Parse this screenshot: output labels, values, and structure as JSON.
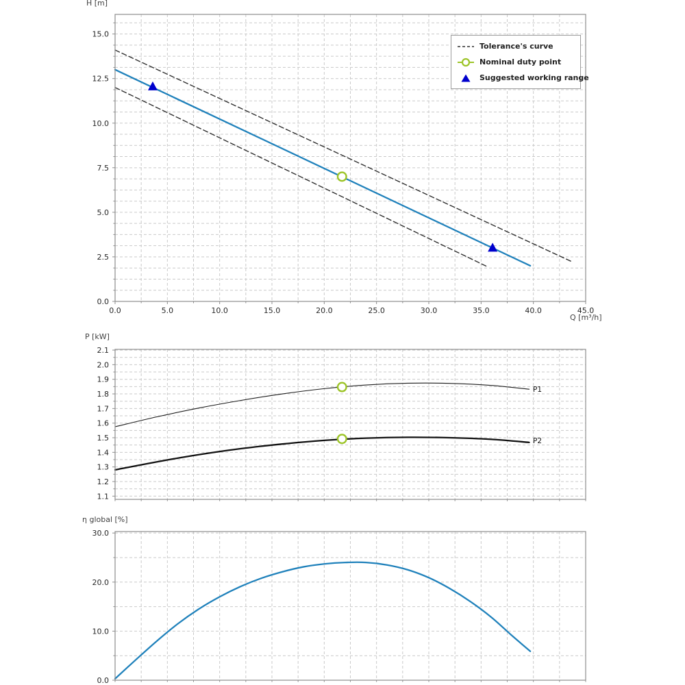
{
  "page": {
    "background": "#ffffff"
  },
  "colors": {
    "curve_blue": "#1f81bb",
    "marker_green": "#9cc427",
    "marker_blue": "#0000cd",
    "tolerance_dash": "#2e2e2e",
    "p1_line": "#1a1a1a",
    "p2_line": "#111111",
    "grid": "#c9c9c9",
    "spine": "#8c8c8c",
    "tick_text": "#262626",
    "axis_label_text": "#3f3f3f",
    "legend_border": "#9a9a9a"
  },
  "legend": {
    "items": [
      {
        "label": "Tolerance's curve",
        "marker": "dashed-line"
      },
      {
        "label": "Nominal duty point",
        "marker": "green-circle"
      },
      {
        "label": "Suggested working range",
        "marker": "blue-triangle"
      }
    ]
  },
  "chart_data": [
    {
      "id": "head_curve",
      "type": "line",
      "title": "",
      "ylabel": "H [m]",
      "xlabel": "Q [m³/h]",
      "xlim": [
        0,
        45
      ],
      "ylim": [
        0,
        16.1
      ],
      "grid_on": true,
      "xticks": {
        "values": [
          0,
          5,
          10,
          15,
          20,
          25,
          30,
          35,
          40,
          45
        ],
        "labels": [
          "0.0",
          "5.0",
          "10.0",
          "15.0",
          "20.0",
          "25.0",
          "30.0",
          "35.0",
          "40.0",
          "45.0"
        ]
      },
      "yticks": {
        "values": [
          0,
          2.5,
          5,
          7.5,
          10,
          12.5,
          15
        ],
        "labels": [
          "0.0",
          "2.5",
          "5.0",
          "7.5",
          "10.0",
          "12.5",
          "15.0"
        ]
      },
      "grid": {
        "x_step": 2.5,
        "y_step": 0.625
      },
      "series": [
        {
          "name": "tolerance_upper",
          "role": "tolerance",
          "points": [
            [
              0,
              14.1
            ],
            [
              43.6,
              2.25
            ]
          ]
        },
        {
          "name": "tolerance_lower",
          "role": "tolerance",
          "points": [
            [
              0,
              12.0
            ],
            [
              35.7,
              1.92
            ]
          ]
        },
        {
          "name": "head",
          "role": "main",
          "points": [
            [
              0,
              13.0
            ],
            [
              39.7,
              2.0
            ]
          ]
        }
      ],
      "markers": [
        {
          "name": "nominal-duty-point",
          "shape": "circle",
          "point": [
            21.7,
            7.0
          ]
        },
        {
          "name": "working-range-min",
          "shape": "triangle",
          "point": [
            3.6,
            12.05
          ]
        },
        {
          "name": "working-range-max",
          "shape": "triangle",
          "point": [
            36.1,
            3.0
          ]
        }
      ]
    },
    {
      "id": "power_curves",
      "type": "line",
      "title": "",
      "ylabel": "P [kW]",
      "xlabel": "",
      "xlim": [
        0,
        45
      ],
      "ylim": [
        1.078,
        2.105
      ],
      "grid_on": true,
      "xticks": {
        "values": [],
        "labels": []
      },
      "yticks": {
        "values": [
          1.1,
          1.2,
          1.3,
          1.4,
          1.5,
          1.6,
          1.7,
          1.8,
          1.9,
          2.0,
          2.1
        ],
        "labels": [
          "1.1",
          "1.2",
          "1.3",
          "1.4",
          "1.5",
          "1.6",
          "1.7",
          "1.8",
          "1.9",
          "2.0",
          "2.1"
        ]
      },
      "grid": {
        "x_step": 2.5,
        "y_step": 0.05
      },
      "series": [
        {
          "name": "P1",
          "role": "p1",
          "label": "P1",
          "points": [
            [
              0,
              1.575
            ],
            [
              4,
              1.643
            ],
            [
              8,
              1.703
            ],
            [
              12,
              1.755
            ],
            [
              16,
              1.8
            ],
            [
              20,
              1.836
            ],
            [
              24,
              1.861
            ],
            [
              28,
              1.873
            ],
            [
              32,
              1.872
            ],
            [
              36,
              1.858
            ],
            [
              39.6,
              1.832
            ]
          ]
        },
        {
          "name": "P2",
          "role": "p2",
          "label": "P2",
          "points": [
            [
              0,
              1.28
            ],
            [
              4,
              1.335
            ],
            [
              8,
              1.384
            ],
            [
              12,
              1.425
            ],
            [
              16,
              1.457
            ],
            [
              20,
              1.482
            ],
            [
              24,
              1.497
            ],
            [
              28,
              1.503
            ],
            [
              32,
              1.5
            ],
            [
              36,
              1.489
            ],
            [
              39.6,
              1.468
            ]
          ]
        }
      ],
      "markers": [
        {
          "name": "duty-point-p1",
          "shape": "circle",
          "point": [
            21.7,
            1.847
          ]
        },
        {
          "name": "duty-point-p2",
          "shape": "circle",
          "point": [
            21.7,
            1.492
          ]
        }
      ]
    },
    {
      "id": "efficiency_curve",
      "type": "line",
      "title": "",
      "ylabel": "η global [%]",
      "xlabel": "",
      "xlim": [
        0,
        45
      ],
      "ylim": [
        0,
        30.3
      ],
      "grid_on": true,
      "xticks": {
        "values": [],
        "labels": []
      },
      "yticks": {
        "values": [
          0,
          10,
          20,
          30
        ],
        "labels": [
          "0.0",
          "10.0",
          "20.0",
          "30.0"
        ]
      },
      "grid": {
        "x_step": 2.5,
        "y_step": 5
      },
      "series": [
        {
          "name": "eta",
          "role": "main",
          "points": [
            [
              0,
              0.3
            ],
            [
              2,
              4.2
            ],
            [
              4,
              8.0
            ],
            [
              6,
              11.5
            ],
            [
              8,
              14.5
            ],
            [
              10,
              17.0
            ],
            [
              12,
              19.1
            ],
            [
              14,
              20.8
            ],
            [
              16,
              22.1
            ],
            [
              18,
              23.1
            ],
            [
              20,
              23.7
            ],
            [
              22,
              24.0
            ],
            [
              24,
              24.0
            ],
            [
              26,
              23.5
            ],
            [
              28,
              22.5
            ],
            [
              30,
              20.9
            ],
            [
              32,
              18.7
            ],
            [
              34,
              16.0
            ],
            [
              36,
              12.8
            ],
            [
              38,
              9.0
            ],
            [
              39.7,
              5.9
            ]
          ]
        }
      ],
      "markers": []
    }
  ]
}
